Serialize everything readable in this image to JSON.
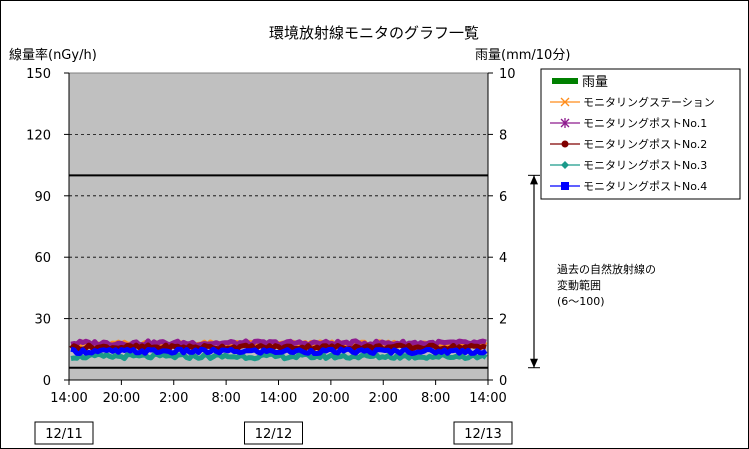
{
  "chart_data": {
    "type": "line",
    "title": "環境放射線モニタのグラフ一覧",
    "ylabel_left": "線量率(nGy/h)",
    "ylabel_right": "雨量(mm/10分)",
    "y_left": {
      "min": 0,
      "max": 150,
      "ticks": [
        "0",
        "30",
        "60",
        "90",
        "120",
        "150"
      ]
    },
    "y_right": {
      "min": 0,
      "max": 10,
      "ticks": [
        "0",
        "2",
        "4",
        "6",
        "8",
        "10"
      ]
    },
    "x_tick_labels": [
      "14:00",
      "20:00",
      "2:00",
      "8:00",
      "14:00",
      "20:00",
      "2:00",
      "8:00",
      "14:00"
    ],
    "date_labels": [
      "12/11",
      "12/12",
      "12/13"
    ],
    "grid": true,
    "legend_position": "right",
    "reference_lines_nGy_h": [
      6,
      100
    ],
    "annotation": {
      "lines": [
        "過去の自然放射線の",
        "変動範囲",
        "(6～100)"
      ],
      "range": [
        6,
        100
      ]
    },
    "series": [
      {
        "name": "雨量",
        "color": "#008000",
        "axis": "right",
        "marker": "bar",
        "level": 0
      },
      {
        "name": "モニタリングステーション",
        "color": "#ff8c1a",
        "axis": "left",
        "marker": "x",
        "level": 17.5
      },
      {
        "name": "モニタリングポストNo.1",
        "color": "#8e1a8e",
        "axis": "left",
        "marker": "asterisk",
        "level": 18
      },
      {
        "name": "モニタリングポストNo.2",
        "color": "#800000",
        "axis": "left",
        "marker": "circle",
        "level": 16
      },
      {
        "name": "モニタリングポストNo.3",
        "color": "#1a9a8a",
        "axis": "left",
        "marker": "diamond",
        "level": 11.5
      },
      {
        "name": "モニタリングポストNo.4",
        "color": "#0000ff",
        "axis": "left",
        "marker": "square",
        "level": 14
      }
    ]
  }
}
